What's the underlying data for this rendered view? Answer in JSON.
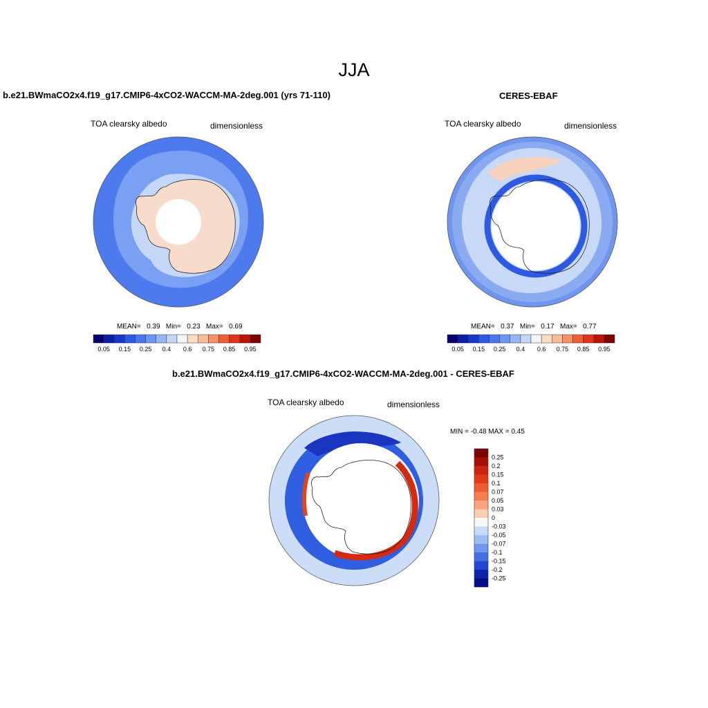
{
  "figure": {
    "title": "JJA",
    "panel_left": {
      "case_title": "b.e21.BWmaCO2x4.f19_g17.CMIP6-4xCO2-WACCM-MA-2deg.001 (yrs 71-110)",
      "variable": "TOA clearsky albedo",
      "units": "dimensionless",
      "mean_label": "MEAN=",
      "mean_value": "0.39",
      "min_label": "Min=",
      "min_value": "0.23",
      "max_label": "Max=",
      "max_value": "0.69"
    },
    "panel_right": {
      "case_title": "CERES-EBAF",
      "variable": "TOA clearsky albedo",
      "units": "dimensionless",
      "mean_label": "MEAN=",
      "mean_value": "0.37",
      "min_label": "Min=",
      "min_value": "0.17",
      "max_label": "Max=",
      "max_value": "0.77"
    },
    "panel_diff": {
      "case_title": "b.e21.BWmaCO2x4.f19_g17.CMIP6-4xCO2-WACCM-MA-2deg.001 - CERES-EBAF",
      "variable": "TOA clearsky albedo",
      "units": "dimensionless",
      "minmax_text": "MIN =  -0.48 MAX =   0.45"
    }
  },
  "chart_data": [
    {
      "type": "heatmap",
      "projection": "south-polar-stereographic",
      "title": "b.e21.BWmaCO2x4.f19_g17.CMIP6-4xCO2-WACCM-MA-2deg.001 (yrs 71-110)",
      "variable": "TOA clearsky albedo",
      "units": "dimensionless",
      "stats": {
        "mean": 0.39,
        "min": 0.23,
        "max": 0.69
      },
      "colorbar": {
        "orientation": "horizontal",
        "tick_labels": [
          "0.05",
          "0.15",
          "0.25",
          "0.4",
          "0.6",
          "0.75",
          "0.85",
          "0.95"
        ],
        "levels": [
          0.05,
          0.1,
          0.15,
          0.2,
          0.25,
          0.3,
          0.4,
          0.5,
          0.6,
          0.7,
          0.75,
          0.8,
          0.85,
          0.9,
          0.95
        ],
        "colors": [
          "#08006e",
          "#0d1da8",
          "#1439cc",
          "#2b58e6",
          "#4a76f0",
          "#6f95f2",
          "#98b5f4",
          "#c3d6f7",
          "#f5f5f5",
          "#fbdcc7",
          "#f8bb9c",
          "#f4906a",
          "#ef5f3a",
          "#e03318",
          "#b81608",
          "#7c0503"
        ]
      }
    },
    {
      "type": "heatmap",
      "projection": "south-polar-stereographic",
      "title": "CERES-EBAF",
      "variable": "TOA clearsky albedo",
      "units": "dimensionless",
      "stats": {
        "mean": 0.37,
        "min": 0.17,
        "max": 0.77
      },
      "colorbar": {
        "orientation": "horizontal",
        "tick_labels": [
          "0.05",
          "0.15",
          "0.25",
          "0.4",
          "0.6",
          "0.75",
          "0.85",
          "0.95"
        ],
        "levels": [
          0.05,
          0.1,
          0.15,
          0.2,
          0.25,
          0.3,
          0.4,
          0.5,
          0.6,
          0.7,
          0.75,
          0.8,
          0.85,
          0.9,
          0.95
        ],
        "colors": [
          "#08006e",
          "#0d1da8",
          "#1439cc",
          "#2b58e6",
          "#4a76f0",
          "#6f95f2",
          "#98b5f4",
          "#c3d6f7",
          "#f5f5f5",
          "#fbdcc7",
          "#f8bb9c",
          "#f4906a",
          "#ef5f3a",
          "#e03318",
          "#b81608",
          "#7c0503"
        ]
      }
    },
    {
      "type": "heatmap",
      "projection": "south-polar-stereographic",
      "title": "b.e21.BWmaCO2x4.f19_g17.CMIP6-4xCO2-WACCM-MA-2deg.001 - CERES-EBAF",
      "variable": "TOA clearsky albedo",
      "units": "dimensionless",
      "stats": {
        "min": -0.48,
        "max": 0.45
      },
      "colorbar": {
        "orientation": "vertical",
        "tick_labels": [
          "0.25",
          "0.2",
          "0.15",
          "0.1",
          "0.07",
          "0.05",
          "0.03",
          "0",
          "-0.03",
          "-0.05",
          "-0.07",
          "-0.1",
          "-0.15",
          "-0.2",
          "-0.25"
        ],
        "colors": [
          "#7c0503",
          "#a70f06",
          "#cc2210",
          "#e33a1c",
          "#f15b32",
          "#f57d50",
          "#f8a47e",
          "#fbcdb3",
          "#f7f7f7",
          "#c6dbf6",
          "#9dbdf2",
          "#6f95ee",
          "#4470e6",
          "#2447d6",
          "#1024b0",
          "#060e85"
        ]
      }
    }
  ]
}
